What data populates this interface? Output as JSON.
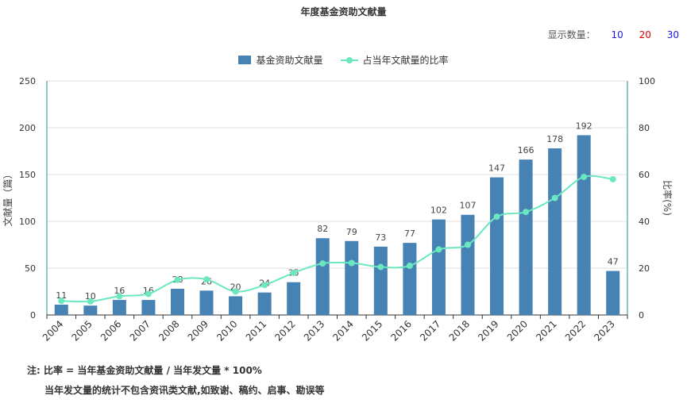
{
  "title": "年度基金资助文献量",
  "display_count": {
    "label": "显示数量：",
    "options": [
      "10",
      "20",
      "30"
    ],
    "colors": [
      "#1a1ae6",
      "#e60000",
      "#1a1ae6"
    ]
  },
  "legend": {
    "bar": "基金资助文献量",
    "line": "占当年文献量的比率"
  },
  "colors": {
    "bar": "#4682b4",
    "line": "#6ce8c0",
    "axis_right": "#2a8c8c"
  },
  "chart_data": {
    "type": "bar",
    "categories": [
      "2004",
      "2005",
      "2006",
      "2007",
      "2008",
      "2009",
      "2010",
      "2011",
      "2012",
      "2013",
      "2014",
      "2015",
      "2016",
      "2017",
      "2018",
      "2019",
      "2020",
      "2021",
      "2022",
      "2023"
    ],
    "series": [
      {
        "name": "基金资助文献量",
        "type": "bar",
        "values": [
          11,
          10,
          16,
          16,
          28,
          26,
          20,
          24,
          35,
          82,
          79,
          73,
          77,
          102,
          107,
          147,
          166,
          178,
          192,
          47
        ]
      },
      {
        "name": "占当年文献量的比率",
        "type": "line",
        "values": [
          6,
          5.8,
          8,
          9,
          15,
          15.2,
          10,
          12.8,
          18,
          22,
          22.2,
          20.5,
          21,
          28,
          30,
          42,
          44,
          50,
          59,
          58
        ]
      }
    ],
    "ylabel": "文献量（篇）",
    "ylabel_right": "比率(%)",
    "ylim": [
      0,
      250
    ],
    "yticks": [
      0,
      50,
      100,
      150,
      200,
      250
    ],
    "ylim_right": [
      0,
      100
    ],
    "yticks_right": [
      0,
      20,
      40,
      60,
      80,
      100
    ],
    "grid": true,
    "legend": "top-center"
  },
  "notes": {
    "line1": "注:   比率 = 当年基金资助文献量 / 当年发文量 * 100%",
    "line2": "当年发文量的统计不包含资讯类文献,如致谢、稿约、启事、勘误等"
  }
}
